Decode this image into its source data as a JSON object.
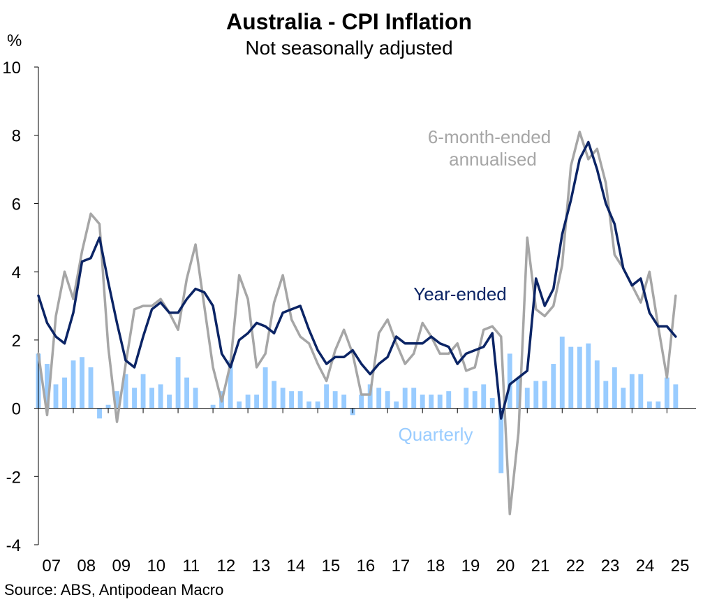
{
  "chart_data": {
    "type": "bar+line",
    "title": "Australia - CPI Inflation",
    "subtitle": "Not seasonally adjusted",
    "yunit": "%",
    "ylim": [
      -4,
      10
    ],
    "yticks": [
      -4,
      -2,
      0,
      2,
      4,
      6,
      8,
      10
    ],
    "xlim": [
      2007.0,
      2025.833
    ],
    "xticks": [
      {
        "label": "07",
        "year": 2007
      },
      {
        "label": "08",
        "year": 2008
      },
      {
        "label": "09",
        "year": 2009
      },
      {
        "label": "10",
        "year": 2010
      },
      {
        "label": "11",
        "year": 2011
      },
      {
        "label": "12",
        "year": 2012
      },
      {
        "label": "13",
        "year": 2013
      },
      {
        "label": "14",
        "year": 2014
      },
      {
        "label": "15",
        "year": 2015
      },
      {
        "label": "16",
        "year": 2016
      },
      {
        "label": "17",
        "year": 2017
      },
      {
        "label": "18",
        "year": 2018
      },
      {
        "label": "19",
        "year": 2019
      },
      {
        "label": "20",
        "year": 2020
      },
      {
        "label": "21",
        "year": 2021
      },
      {
        "label": "22",
        "year": 2022
      },
      {
        "label": "23",
        "year": 2023
      },
      {
        "label": "24",
        "year": 2024
      },
      {
        "label": "25",
        "year": 2025
      }
    ],
    "x": [
      "2007-Q1",
      "2007-Q2",
      "2007-Q3",
      "2007-Q4",
      "2008-Q1",
      "2008-Q2",
      "2008-Q3",
      "2008-Q4",
      "2009-Q1",
      "2009-Q2",
      "2009-Q3",
      "2009-Q4",
      "2010-Q1",
      "2010-Q2",
      "2010-Q3",
      "2010-Q4",
      "2011-Q1",
      "2011-Q2",
      "2011-Q3",
      "2011-Q4",
      "2012-Q1",
      "2012-Q2",
      "2012-Q3",
      "2012-Q4",
      "2013-Q1",
      "2013-Q2",
      "2013-Q3",
      "2013-Q4",
      "2014-Q1",
      "2014-Q2",
      "2014-Q3",
      "2014-Q4",
      "2015-Q1",
      "2015-Q2",
      "2015-Q3",
      "2015-Q4",
      "2016-Q1",
      "2016-Q2",
      "2016-Q3",
      "2016-Q4",
      "2017-Q1",
      "2017-Q2",
      "2017-Q3",
      "2017-Q4",
      "2018-Q1",
      "2018-Q2",
      "2018-Q3",
      "2018-Q4",
      "2019-Q1",
      "2019-Q2",
      "2019-Q3",
      "2019-Q4",
      "2020-Q1",
      "2020-Q2",
      "2020-Q3",
      "2020-Q4",
      "2021-Q1",
      "2021-Q2",
      "2021-Q3",
      "2021-Q4",
      "2022-Q1",
      "2022-Q2",
      "2022-Q3",
      "2022-Q4",
      "2023-Q1",
      "2023-Q2",
      "2023-Q3",
      "2023-Q4",
      "2024-Q1",
      "2024-Q2",
      "2024-Q3",
      "2024-Q4",
      "2025-Q1",
      "2025-Q2"
    ],
    "series": [
      {
        "name": "Quarterly",
        "kind": "bar",
        "color": "#99CCFF",
        "values": [
          1.6,
          1.3,
          0.7,
          0.9,
          1.4,
          1.5,
          1.2,
          -0.3,
          0.1,
          0.5,
          1.0,
          0.6,
          1.0,
          0.6,
          0.7,
          0.4,
          1.5,
          0.9,
          0.6,
          0.0,
          0.1,
          0.5,
          1.4,
          0.2,
          0.4,
          0.4,
          1.2,
          0.8,
          0.6,
          0.5,
          0.5,
          0.2,
          0.2,
          0.7,
          0.5,
          0.4,
          -0.2,
          0.4,
          0.7,
          0.6,
          0.5,
          0.2,
          0.6,
          0.6,
          0.4,
          0.4,
          0.4,
          0.5,
          0.0,
          0.6,
          0.5,
          0.7,
          0.3,
          -1.9,
          1.6,
          0.9,
          0.6,
          0.8,
          0.8,
          1.3,
          2.1,
          1.8,
          1.8,
          1.9,
          1.4,
          0.8,
          1.2,
          0.6,
          1.0,
          1.0,
          0.2,
          0.2,
          0.9,
          0.7
        ]
      },
      {
        "name": "Year-ended",
        "kind": "line",
        "color": "#0B2465",
        "values": [
          3.3,
          2.5,
          2.1,
          1.9,
          2.8,
          4.3,
          4.4,
          5.0,
          3.7,
          2.5,
          1.4,
          1.2,
          2.1,
          2.9,
          3.1,
          2.8,
          2.8,
          3.2,
          3.5,
          3.4,
          3.0,
          1.6,
          1.2,
          2.0,
          2.2,
          2.5,
          2.4,
          2.2,
          2.8,
          2.9,
          3.0,
          2.3,
          1.7,
          1.3,
          1.5,
          1.5,
          1.7,
          1.3,
          1.0,
          1.3,
          1.5,
          2.1,
          1.9,
          1.9,
          1.9,
          2.1,
          1.9,
          1.8,
          1.3,
          1.6,
          1.7,
          1.8,
          2.2,
          -0.3,
          0.7,
          0.9,
          1.1,
          3.8,
          3.0,
          3.5,
          5.1,
          6.1,
          7.3,
          7.8,
          7.0,
          6.0,
          5.4,
          4.1,
          3.6,
          3.8,
          2.8,
          2.4,
          2.4,
          2.1
        ]
      },
      {
        "name": "6-month-ended annualised",
        "kind": "line",
        "color": "#A6A6A6",
        "values": [
          1.6,
          -0.2,
          2.7,
          4.0,
          3.2,
          4.6,
          5.7,
          5.4,
          1.8,
          -0.4,
          1.3,
          2.9,
          3.0,
          3.0,
          3.2,
          2.8,
          2.3,
          3.8,
          4.8,
          3.0,
          1.2,
          0.2,
          1.3,
          3.9,
          3.2,
          1.2,
          1.6,
          3.1,
          3.9,
          2.6,
          2.1,
          1.9,
          1.3,
          0.8,
          1.7,
          2.3,
          1.6,
          0.4,
          0.4,
          2.2,
          2.6,
          1.9,
          1.3,
          1.6,
          2.5,
          2.1,
          1.6,
          1.6,
          1.9,
          1.1,
          1.2,
          2.3,
          2.4,
          2.1,
          -3.1,
          -0.7,
          5.0,
          2.9,
          2.7,
          3.0,
          4.2,
          7.1,
          8.1,
          7.3,
          7.6,
          6.6,
          4.5,
          4.1,
          3.6,
          3.1,
          4.0,
          2.4,
          0.9,
          3.3
        ]
      }
    ],
    "annotations": [
      {
        "lines": [
          "6-month-ended",
          "annualised"
        ],
        "series": "6-month-ended annualised"
      },
      {
        "lines": [
          "Year-ended"
        ],
        "series": "Year-ended"
      },
      {
        "lines": [
          "Quarterly"
        ],
        "series": "Quarterly"
      }
    ],
    "source": "Source: ABS, Antipodean Macro",
    "grid": false
  }
}
